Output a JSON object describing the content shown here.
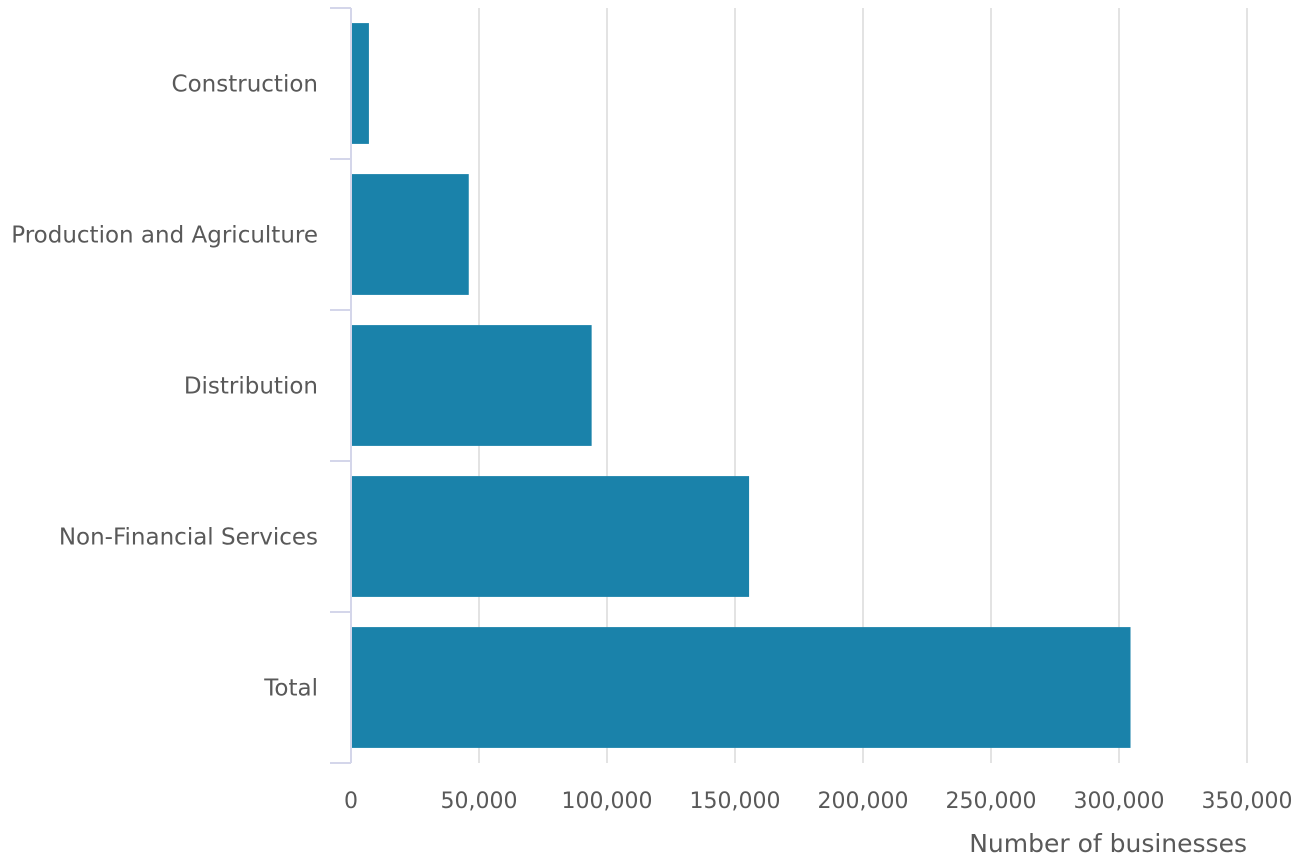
{
  "chart_data": {
    "type": "bar",
    "orientation": "horizontal",
    "categories": [
      "Construction",
      "Production and Agriculture",
      "Distribution",
      "Non-Financial Services",
      "Total"
    ],
    "values": [
      7000,
      46000,
      94000,
      155500,
      304500
    ],
    "xlabel": "Number of businesses",
    "ylabel": "",
    "xlim": [
      0,
      350000
    ],
    "x_ticks": [
      0,
      50000,
      100000,
      150000,
      200000,
      250000,
      300000,
      350000
    ],
    "x_tick_labels": [
      "0",
      "50,000",
      "100,000",
      "150,000",
      "200,000",
      "250,000",
      "300,000",
      "350,000"
    ],
    "grid": "vertical",
    "legend": "none",
    "colors": {
      "bar": "#1a82aa",
      "grid": "#e3e3e3",
      "axis": "#d4d6ea",
      "text": "#595959"
    }
  }
}
